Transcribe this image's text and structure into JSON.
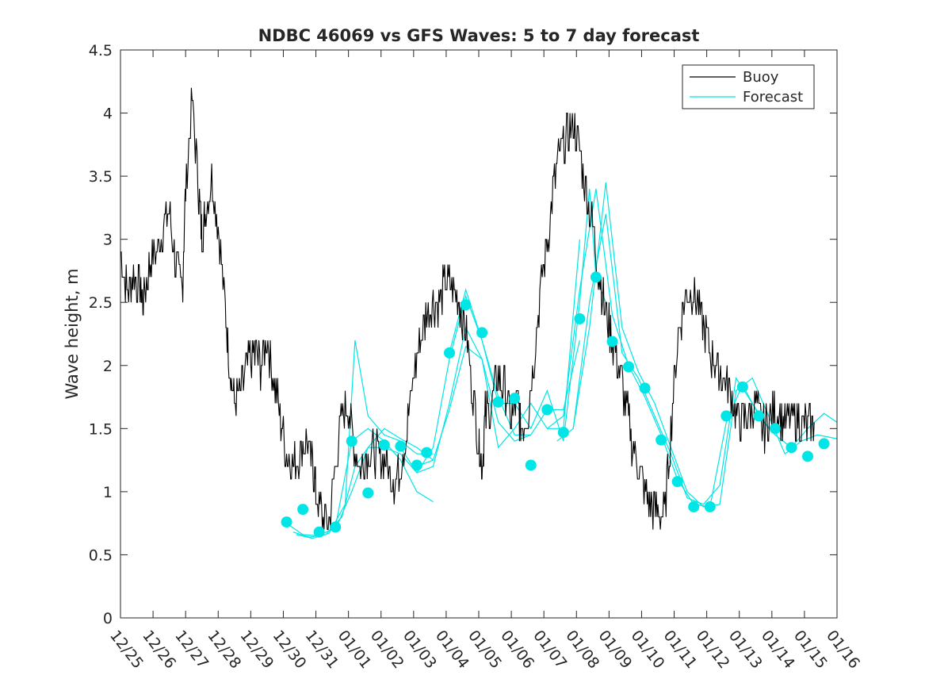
{
  "chart_data": {
    "type": "line",
    "title": "NDBC 46069 vs GFS Waves: 5 to 7 day forecast",
    "xlabel": "",
    "ylabel": "Wave height, m",
    "ylim": [
      0,
      4.5
    ],
    "xlim": [
      0,
      22
    ],
    "yticks": [
      "0",
      "0.5",
      "1",
      "1.5",
      "2",
      "2.5",
      "3",
      "3.5",
      "4",
      "4.5"
    ],
    "xtick_labels": [
      "12/25",
      "12/26",
      "12/27",
      "12/28",
      "12/29",
      "12/30",
      "12/31",
      "01/01",
      "01/02",
      "01/03",
      "01/04",
      "01/05",
      "01/06",
      "01/07",
      "01/08",
      "01/09",
      "01/10",
      "01/11",
      "01/12",
      "01/13",
      "01/14",
      "01/15",
      "01/16"
    ],
    "x_unit": "days since 12/25",
    "legend": {
      "location": "top-right",
      "entries": [
        {
          "name": "Buoy",
          "color": "#000000"
        },
        {
          "name": "Forecast",
          "color": "#00E5E5"
        }
      ]
    },
    "series": [
      {
        "name": "Buoy",
        "color": "#000000",
        "x": [
          0,
          0.2,
          0.4,
          0.6,
          0.7,
          0.9,
          1.1,
          1.3,
          1.5,
          1.7,
          1.9,
          2.0,
          2.2,
          2.4,
          2.5,
          2.6,
          2.8,
          3.0,
          3.2,
          3.35,
          3.5,
          3.7,
          3.9,
          4.1,
          4.3,
          4.5,
          4.7,
          4.9,
          5.1,
          5.3,
          5.5,
          5.7,
          5.9,
          6.0,
          6.2,
          6.4,
          6.6,
          6.8,
          7.0,
          7.2,
          7.4,
          7.6,
          7.8,
          8.0,
          8.2,
          8.4,
          8.6,
          8.8,
          9.0,
          9.2,
          9.4,
          9.6,
          9.8,
          10.0,
          10.2,
          10.4,
          10.6,
          10.8,
          11.0,
          11.1,
          11.2,
          11.4,
          11.6,
          11.8,
          12.0,
          12.2,
          12.3,
          12.5,
          12.7,
          12.9,
          13.1,
          13.3,
          13.5,
          13.7,
          13.9,
          14.1,
          14.3,
          14.5,
          14.7,
          14.9,
          15.1,
          15.3,
          15.5,
          15.7,
          15.9,
          16.1,
          16.3,
          16.5,
          16.7,
          16.9,
          17.1,
          17.3,
          17.5,
          17.7,
          17.9,
          18.1,
          18.3,
          18.5,
          18.7,
          18.9,
          19.1,
          19.3,
          19.5,
          19.7,
          19.9,
          20.1,
          20.3,
          20.5,
          20.7,
          20.9,
          21.1,
          21.3
        ],
        "values": [
          2.9,
          2.6,
          2.7,
          2.6,
          2.5,
          2.8,
          2.9,
          3.1,
          3.2,
          2.8,
          2.6,
          3.4,
          4.1,
          3.4,
          3.0,
          3.2,
          3.5,
          3.1,
          2.5,
          2.0,
          1.7,
          1.8,
          2.0,
          2.1,
          2.0,
          2.2,
          1.9,
          1.6,
          1.3,
          1.2,
          1.3,
          1.4,
          1.2,
          1.0,
          0.8,
          0.75,
          1.2,
          1.6,
          1.7,
          1.3,
          1.2,
          1.3,
          1.3,
          1.3,
          1.2,
          1.1,
          1.2,
          1.5,
          1.9,
          2.2,
          2.4,
          2.5,
          2.5,
          2.7,
          2.6,
          2.5,
          2.3,
          1.8,
          1.4,
          1.2,
          1.6,
          1.7,
          1.9,
          1.8,
          1.6,
          1.7,
          1.5,
          1.6,
          2.1,
          2.6,
          3.0,
          3.4,
          3.7,
          3.8,
          3.9,
          3.7,
          3.4,
          3.1,
          2.7,
          2.4,
          2.2,
          2.0,
          1.7,
          1.4,
          1.2,
          1.0,
          0.9,
          0.85,
          0.8,
          1.5,
          2.2,
          2.5,
          2.6,
          2.5,
          2.3,
          2.1,
          2.0,
          1.9,
          1.8,
          1.6,
          1.55,
          1.6,
          1.7,
          1.5,
          1.55,
          1.65,
          1.6,
          1.55,
          1.6,
          1.55,
          1.5,
          1.55
        ]
      },
      {
        "name": "Forecast",
        "color": "#00E5E5",
        "lines": [
          {
            "x": [
              5.1,
              5.6,
              6.1,
              6.6,
              7.1,
              7.6,
              8.1,
              8.6,
              9.1,
              9.6
            ],
            "values": [
              0.75,
              0.66,
              0.65,
              0.72,
              1.4,
              1.5,
              1.4,
              1.25,
              1.0,
              0.92
            ]
          },
          {
            "x": [
              5.3,
              5.8,
              6.3,
              6.8,
              7.2,
              7.6,
              8.1,
              8.6,
              9.1,
              9.6
            ],
            "values": [
              0.68,
              0.64,
              0.66,
              0.8,
              1.2,
              1.35,
              1.5,
              1.42,
              1.35,
              1.25
            ]
          },
          {
            "x": [
              5.4,
              5.9,
              6.4,
              6.9,
              7.2,
              7.6,
              8.1,
              8.6,
              9.1,
              9.6
            ],
            "values": [
              0.66,
              0.63,
              0.67,
              0.9,
              2.2,
              1.6,
              1.45,
              1.4,
              1.3,
              1.3
            ]
          },
          {
            "x": [
              6.6,
              7.1,
              7.6,
              8.1,
              8.6,
              9.1,
              9.6,
              10.1,
              10.6,
              11.1,
              11.6,
              12.1,
              12.6
            ],
            "values": [
              0.7,
              1.0,
              1.35,
              1.35,
              1.3,
              1.15,
              1.2,
              1.7,
              2.3,
              2.05,
              1.55,
              1.4,
              1.45
            ]
          },
          {
            "x": [
              8.6,
              9.1,
              9.6,
              10.1,
              10.6,
              11.1,
              11.6,
              12.1,
              12.6,
              13.1,
              13.6,
              14.1
            ],
            "values": [
              1.35,
              1.15,
              1.35,
              2.05,
              2.55,
              2.2,
              1.75,
              1.45,
              1.45,
              1.65,
              1.65,
              2.2
            ]
          },
          {
            "x": [
              9.1,
              9.6,
              10.1,
              10.6,
              11.1,
              11.6,
              12.1,
              12.6,
              13.1,
              13.6,
              14.1
            ],
            "values": [
              1.2,
              1.25,
              1.65,
              2.15,
              2.05,
              1.35,
              1.5,
              1.7,
              1.5,
              1.5,
              3.0
            ]
          },
          {
            "x": [
              10.1,
              10.6,
              11.1,
              11.6,
              12.1,
              12.6,
              13.1,
              13.6,
              14.1,
              14.4,
              14.6,
              14.9
            ],
            "values": [
              2.1,
              2.6,
              2.2,
              1.7,
              1.7,
              1.5,
              1.8,
              1.4,
              2.5,
              3.4,
              2.7,
              2.5
            ]
          },
          {
            "x": [
              13.1,
              13.6,
              14.1,
              14.6,
              15.1,
              15.6,
              16.1,
              16.6,
              17.1,
              17.6,
              18.1,
              18.6,
              19.1,
              19.6,
              20.1,
              20.6,
              21.1,
              21.6,
              22.0
            ],
            "values": [
              1.5,
              1.6,
              2.6,
              3.4,
              2.4,
              2.0,
              1.75,
              1.45,
              1.1,
              0.9,
              0.88,
              1.55,
              1.85,
              1.6,
              1.45,
              1.35,
              1.5,
              1.62,
              1.55
            ]
          },
          {
            "x": [
              13.4,
              13.9,
              14.4,
              14.9,
              15.4,
              15.9,
              16.4,
              16.9,
              17.4,
              17.9,
              18.4,
              18.9,
              19.4,
              19.9,
              20.4,
              20.9,
              21.4,
              22.0
            ],
            "values": [
              1.4,
              1.5,
              2.3,
              3.45,
              2.3,
              1.95,
              1.7,
              1.35,
              1.0,
              0.88,
              0.9,
              1.8,
              1.9,
              1.6,
              1.3,
              1.4,
              1.45,
              1.42
            ]
          },
          {
            "x": [
              13.9,
              14.4,
              14.9,
              15.4,
              15.9,
              16.4,
              16.9,
              17.4,
              17.9,
              18.4,
              18.9,
              19.4,
              19.9
            ],
            "values": [
              1.5,
              2.5,
              3.2,
              2.1,
              1.9,
              1.6,
              1.3,
              0.95,
              0.9,
              1.05,
              1.9,
              1.7,
              1.5
            ]
          }
        ]
      },
      {
        "name": "Forecast markers",
        "color": "#00E5E5",
        "x": [
          5.1,
          5.6,
          6.1,
          6.6,
          7.1,
          7.6,
          8.1,
          8.6,
          9.1,
          9.4,
          10.1,
          10.6,
          11.1,
          11.6,
          12.1,
          12.6,
          13.1,
          13.6,
          14.1,
          14.6,
          15.1,
          15.6,
          16.1,
          16.6,
          17.1,
          17.6,
          18.1,
          18.6,
          19.1,
          19.6,
          20.1,
          20.6,
          21.1,
          21.6
        ],
        "values": [
          0.76,
          0.86,
          0.68,
          0.72,
          1.4,
          0.99,
          1.37,
          1.36,
          1.21,
          1.31,
          2.1,
          2.48,
          2.26,
          1.71,
          1.74,
          1.21,
          1.65,
          1.47,
          2.37,
          2.7,
          2.19,
          1.99,
          1.82,
          1.41,
          1.08,
          0.88,
          0.88,
          1.6,
          1.83,
          1.6,
          1.5,
          1.35,
          1.28,
          1.38
        ]
      }
    ]
  }
}
